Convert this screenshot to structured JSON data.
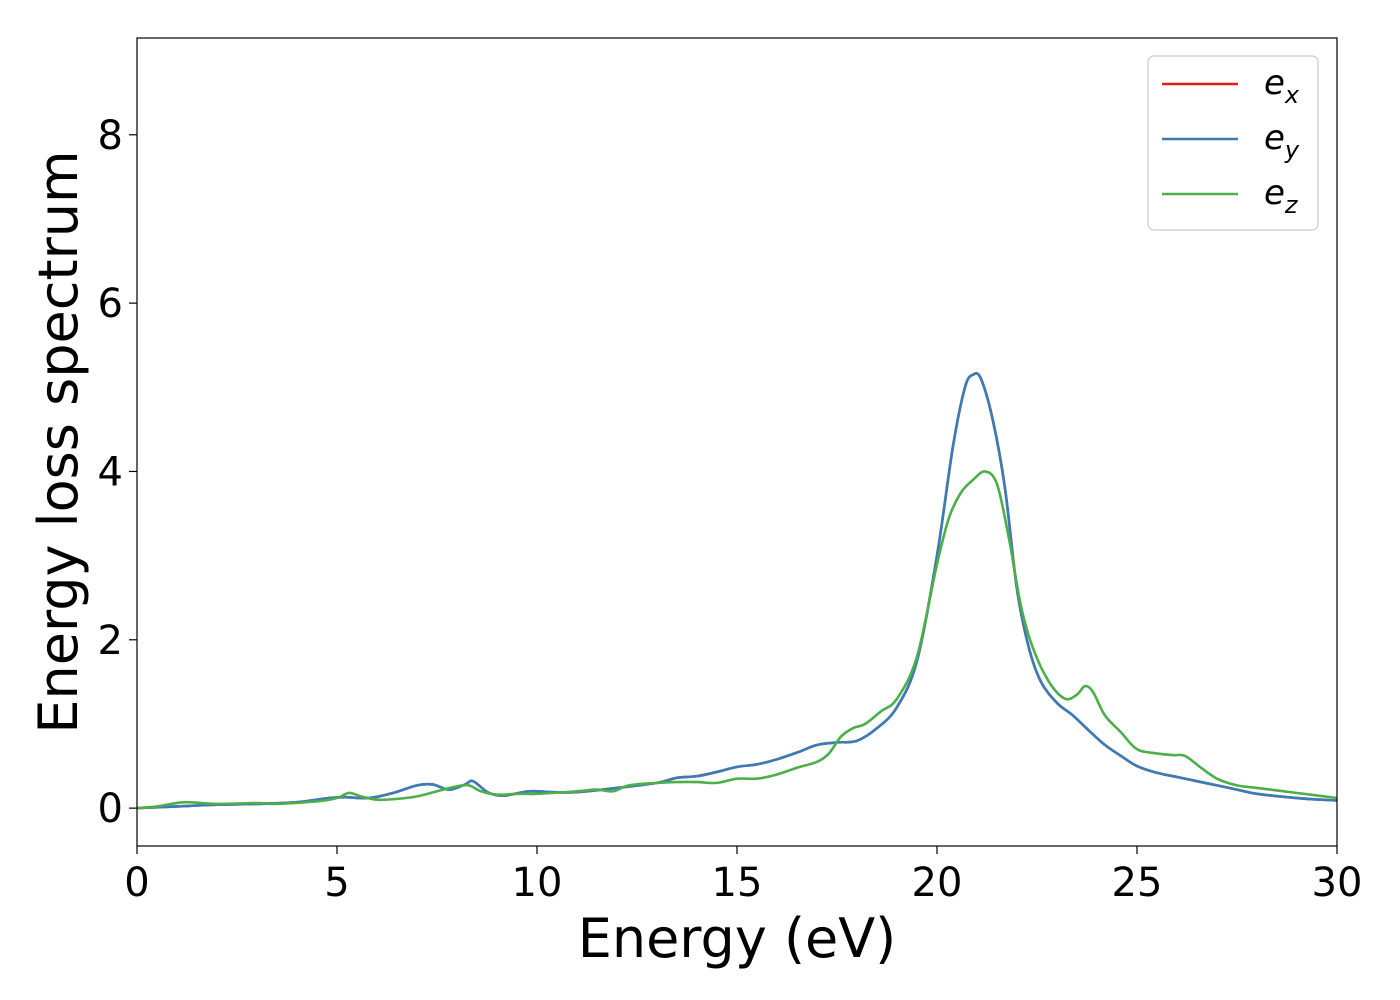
{
  "chart_data": {
    "type": "line",
    "title": "",
    "xlabel": "Energy (eV)",
    "ylabel": "Energy loss spectrum",
    "xlim": [
      0,
      30
    ],
    "ylim": [
      -0.45,
      9.15
    ],
    "xticks": [
      0,
      5,
      10,
      15,
      20,
      25,
      30
    ],
    "yticks": [
      0,
      2,
      4,
      6,
      8
    ],
    "grid": false,
    "legend_position": "top-right",
    "series": [
      {
        "name": "e",
        "subscript": "x",
        "color": "#e41a1c",
        "x": [
          0,
          1,
          2,
          3,
          4,
          4.8,
          5.2,
          5.8,
          6.4,
          7.0,
          7.4,
          7.8,
          8.2,
          8.4,
          8.8,
          9.2,
          9.8,
          10.4,
          11,
          12,
          13,
          13.5,
          14,
          14.5,
          15,
          15.5,
          16,
          16.5,
          17,
          17.5,
          18,
          18.5,
          19,
          19.5,
          20,
          20.4,
          20.7,
          20.9,
          21.1,
          21.4,
          21.7,
          22,
          22.3,
          22.6,
          23,
          23.4,
          23.8,
          24.2,
          24.6,
          25,
          25.5,
          26,
          26.5,
          27,
          27.5,
          28,
          29,
          30
        ],
        "y": [
          0.0,
          0.02,
          0.04,
          0.05,
          0.07,
          0.12,
          0.13,
          0.12,
          0.18,
          0.27,
          0.28,
          0.22,
          0.28,
          0.32,
          0.18,
          0.15,
          0.2,
          0.19,
          0.19,
          0.24,
          0.3,
          0.36,
          0.38,
          0.43,
          0.49,
          0.52,
          0.58,
          0.66,
          0.75,
          0.78,
          0.8,
          0.95,
          1.2,
          1.75,
          3.0,
          4.3,
          5.0,
          5.15,
          5.1,
          4.6,
          3.8,
          2.6,
          1.9,
          1.5,
          1.25,
          1.1,
          0.92,
          0.75,
          0.62,
          0.5,
          0.42,
          0.37,
          0.32,
          0.27,
          0.22,
          0.17,
          0.12,
          0.09
        ]
      },
      {
        "name": "e",
        "subscript": "y",
        "color": "#377eb8",
        "x": [
          0,
          1,
          2,
          3,
          4,
          4.8,
          5.2,
          5.8,
          6.4,
          7.0,
          7.4,
          7.8,
          8.2,
          8.4,
          8.8,
          9.2,
          9.8,
          10.4,
          11,
          12,
          13,
          13.5,
          14,
          14.5,
          15,
          15.5,
          16,
          16.5,
          17,
          17.5,
          18,
          18.5,
          19,
          19.5,
          20,
          20.4,
          20.7,
          20.9,
          21.1,
          21.4,
          21.7,
          22,
          22.3,
          22.6,
          23,
          23.4,
          23.8,
          24.2,
          24.6,
          25,
          25.5,
          26,
          26.5,
          27,
          27.5,
          28,
          29,
          30
        ],
        "y": [
          0.0,
          0.02,
          0.04,
          0.05,
          0.07,
          0.12,
          0.13,
          0.12,
          0.18,
          0.27,
          0.28,
          0.22,
          0.28,
          0.32,
          0.18,
          0.15,
          0.2,
          0.19,
          0.19,
          0.24,
          0.3,
          0.36,
          0.38,
          0.43,
          0.49,
          0.52,
          0.58,
          0.66,
          0.75,
          0.78,
          0.8,
          0.95,
          1.2,
          1.75,
          3.0,
          4.3,
          5.0,
          5.15,
          5.1,
          4.6,
          3.8,
          2.6,
          1.9,
          1.5,
          1.25,
          1.1,
          0.92,
          0.75,
          0.62,
          0.5,
          0.42,
          0.37,
          0.32,
          0.27,
          0.22,
          0.17,
          0.12,
          0.09
        ]
      },
      {
        "name": "e",
        "subscript": "z",
        "color": "#4daf4a",
        "x": [
          0,
          0.5,
          1.2,
          2,
          3,
          3.5,
          4.5,
          5.0,
          5.3,
          5.6,
          6.0,
          6.5,
          7.0,
          7.5,
          8.0,
          8.3,
          8.6,
          9.0,
          9.5,
          10,
          11,
          11.5,
          11.9,
          12.3,
          13,
          13.5,
          14,
          14.5,
          15,
          15.5,
          16,
          16.5,
          17,
          17.3,
          17.6,
          17.9,
          18.2,
          18.6,
          19,
          19.5,
          20,
          20.3,
          20.6,
          20.9,
          21.2,
          21.5,
          21.8,
          22.1,
          22.4,
          22.8,
          23.2,
          23.5,
          23.7,
          23.9,
          24.2,
          24.6,
          25,
          25.5,
          25.9,
          26.2,
          26.6,
          27,
          27.5,
          28,
          29,
          30
        ],
        "y": [
          0.0,
          0.02,
          0.07,
          0.05,
          0.06,
          0.05,
          0.08,
          0.12,
          0.18,
          0.14,
          0.1,
          0.11,
          0.14,
          0.2,
          0.26,
          0.27,
          0.2,
          0.16,
          0.17,
          0.17,
          0.2,
          0.22,
          0.2,
          0.27,
          0.3,
          0.31,
          0.31,
          0.3,
          0.35,
          0.35,
          0.4,
          0.48,
          0.55,
          0.65,
          0.85,
          0.95,
          1.0,
          1.15,
          1.3,
          1.8,
          2.9,
          3.45,
          3.75,
          3.9,
          4.0,
          3.85,
          3.2,
          2.4,
          1.9,
          1.5,
          1.3,
          1.35,
          1.45,
          1.38,
          1.1,
          0.9,
          0.7,
          0.65,
          0.63,
          0.62,
          0.48,
          0.35,
          0.27,
          0.24,
          0.18,
          0.12
        ]
      }
    ]
  }
}
